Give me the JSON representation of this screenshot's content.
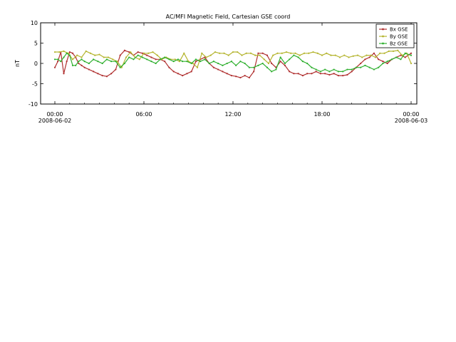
{
  "chart_data": {
    "type": "line",
    "title": "AC/MFI  Magnetic Field, Cartesian GSE coord",
    "ylabel": "nT",
    "xlabel": "",
    "ylim": [
      -10,
      10
    ],
    "xlim": [
      0,
      24
    ],
    "y_ticks": [
      10,
      5,
      0,
      -5,
      -10
    ],
    "y_tick_labels": [
      "10",
      "5",
      "0",
      "-5",
      "-10"
    ],
    "x_ticks": [
      0,
      6,
      12,
      18,
      24
    ],
    "x_tick_labels": [
      "00:00",
      "06:00",
      "12:00",
      "18:00",
      "00:00"
    ],
    "x_date_labels": [
      {
        "x": 0,
        "label": "2008-06-02"
      },
      {
        "x": 24,
        "label": "2008-06-03"
      }
    ],
    "legend_position": "top-right",
    "grid": false,
    "series": [
      {
        "name": "Bx GSE",
        "color": "#b03030",
        "x": [
          0.0,
          0.2,
          0.4,
          0.6,
          0.8,
          1.0,
          1.2,
          1.4,
          1.6,
          1.8,
          2.0,
          2.3,
          2.6,
          2.9,
          3.2,
          3.5,
          3.8,
          4.1,
          4.4,
          4.7,
          5.0,
          5.3,
          5.6,
          5.9,
          6.2,
          6.5,
          6.8,
          7.1,
          7.4,
          7.7,
          8.0,
          8.3,
          8.6,
          8.9,
          9.2,
          9.5,
          9.8,
          10.1,
          10.4,
          10.7,
          11.0,
          11.3,
          11.6,
          11.9,
          12.2,
          12.5,
          12.8,
          13.1,
          13.4,
          13.7,
          14.0,
          14.3,
          14.6,
          14.9,
          15.2,
          15.5,
          15.8,
          16.1,
          16.4,
          16.7,
          17.0,
          17.3,
          17.6,
          17.9,
          18.2,
          18.5,
          18.8,
          19.1,
          19.4,
          19.7,
          20.0,
          20.3,
          20.6,
          20.9,
          21.2,
          21.5,
          21.8,
          22.1,
          22.4,
          22.7,
          23.0,
          23.3,
          23.6,
          24.0
        ],
        "values": [
          -1.0,
          0.5,
          2.8,
          -2.5,
          0.5,
          2.8,
          2.5,
          1.5,
          0.0,
          -0.5,
          -1.0,
          -1.5,
          -2.0,
          -2.5,
          -3.0,
          -3.2,
          -2.5,
          -1.5,
          2.0,
          3.2,
          2.8,
          2.0,
          2.8,
          2.5,
          2.0,
          1.5,
          1.0,
          1.0,
          0.5,
          -1.0,
          -2.0,
          -2.5,
          -3.0,
          -2.5,
          -2.0,
          0.5,
          1.0,
          1.5,
          0.0,
          -1.0,
          -1.5,
          -2.0,
          -2.5,
          -3.0,
          -3.2,
          -3.5,
          -3.0,
          -3.5,
          -2.0,
          2.5,
          2.5,
          2.0,
          0.0,
          -1.0,
          0.5,
          -0.5,
          -2.0,
          -2.5,
          -2.5,
          -3.0,
          -2.5,
          -2.5,
          -2.0,
          -2.5,
          -2.5,
          -2.8,
          -2.5,
          -3.0,
          -3.0,
          -2.8,
          -2.0,
          -1.0,
          0.0,
          1.0,
          1.5,
          2.5,
          1.0,
          0.5,
          0.0,
          1.0,
          1.5,
          2.0,
          1.5,
          2.5
        ]
      },
      {
        "name": "By GSE",
        "color": "#b5b530",
        "x": [
          0.0,
          0.3,
          0.6,
          0.9,
          1.2,
          1.5,
          1.8,
          2.1,
          2.4,
          2.7,
          3.0,
          3.3,
          3.6,
          3.9,
          4.2,
          4.5,
          4.8,
          5.1,
          5.4,
          5.7,
          6.0,
          6.3,
          6.6,
          6.9,
          7.2,
          7.5,
          7.8,
          8.1,
          8.4,
          8.7,
          9.0,
          9.3,
          9.6,
          9.9,
          10.2,
          10.5,
          10.8,
          11.1,
          11.4,
          11.7,
          12.0,
          12.3,
          12.6,
          12.9,
          13.2,
          13.5,
          13.8,
          14.1,
          14.4,
          14.7,
          15.0,
          15.3,
          15.6,
          15.9,
          16.2,
          16.5,
          16.8,
          17.1,
          17.4,
          17.7,
          18.0,
          18.3,
          18.6,
          18.9,
          19.2,
          19.5,
          19.8,
          20.1,
          20.4,
          20.7,
          21.0,
          21.3,
          21.6,
          21.9,
          22.2,
          22.5,
          22.8,
          23.1,
          23.4,
          23.7,
          24.0
        ],
        "values": [
          2.8,
          2.8,
          3.0,
          2.5,
          1.0,
          2.0,
          1.5,
          3.0,
          2.5,
          2.0,
          2.2,
          1.5,
          1.5,
          1.0,
          0.5,
          -1.0,
          1.5,
          2.8,
          1.5,
          1.0,
          2.5,
          2.5,
          2.8,
          2.0,
          1.0,
          1.5,
          1.0,
          1.0,
          0.5,
          2.5,
          0.5,
          0.0,
          -1.0,
          2.5,
          1.5,
          2.0,
          2.8,
          2.5,
          2.5,
          2.0,
          2.8,
          2.8,
          2.0,
          2.5,
          2.5,
          2.0,
          2.0,
          1.0,
          0.0,
          2.0,
          2.5,
          2.5,
          2.8,
          2.5,
          2.5,
          2.0,
          2.5,
          2.5,
          2.8,
          2.5,
          2.0,
          2.5,
          2.0,
          2.0,
          1.5,
          2.0,
          1.5,
          1.8,
          2.0,
          1.5,
          2.0,
          2.0,
          1.5,
          2.5,
          2.5,
          3.0,
          3.0,
          3.2,
          2.0,
          2.5,
          0.0
        ]
      },
      {
        "name": "Bz GSE",
        "color": "#30b030",
        "x": [
          0.0,
          0.2,
          0.4,
          0.6,
          0.8,
          1.0,
          1.2,
          1.4,
          1.6,
          1.8,
          2.0,
          2.3,
          2.6,
          2.9,
          3.2,
          3.5,
          3.8,
          4.1,
          4.4,
          4.7,
          5.0,
          5.3,
          5.6,
          5.9,
          6.2,
          6.5,
          6.8,
          7.1,
          7.4,
          7.7,
          8.0,
          8.3,
          8.6,
          8.9,
          9.2,
          9.5,
          9.8,
          10.1,
          10.4,
          10.7,
          11.0,
          11.3,
          11.6,
          11.9,
          12.2,
          12.5,
          12.8,
          13.1,
          13.4,
          13.7,
          14.0,
          14.3,
          14.6,
          14.9,
          15.2,
          15.5,
          15.8,
          16.1,
          16.4,
          16.7,
          17.0,
          17.3,
          17.6,
          17.9,
          18.2,
          18.5,
          18.8,
          19.1,
          19.4,
          19.7,
          20.0,
          20.3,
          20.6,
          20.9,
          21.2,
          21.5,
          21.8,
          22.1,
          22.4,
          22.7,
          23.0,
          23.3,
          23.6,
          24.0
        ],
        "values": [
          1.0,
          1.0,
          0.5,
          1.5,
          2.5,
          2.0,
          -0.5,
          -0.5,
          0.5,
          1.0,
          0.5,
          0.0,
          1.0,
          0.5,
          0.0,
          1.0,
          0.5,
          0.5,
          -1.0,
          0.0,
          1.5,
          1.0,
          2.0,
          1.5,
          1.0,
          0.5,
          0.0,
          1.0,
          1.5,
          1.0,
          0.5,
          1.0,
          0.5,
          0.5,
          0.0,
          1.0,
          0.5,
          1.0,
          0.0,
          0.5,
          0.0,
          -0.5,
          0.0,
          0.5,
          -0.5,
          0.5,
          0.0,
          -1.0,
          -1.0,
          -0.5,
          0.0,
          -1.0,
          -2.0,
          -1.5,
          1.5,
          0.0,
          1.0,
          2.0,
          1.5,
          0.5,
          0.0,
          -1.0,
          -1.5,
          -2.0,
          -1.5,
          -2.0,
          -1.5,
          -2.0,
          -2.0,
          -1.5,
          -1.5,
          -1.0,
          -1.0,
          -0.5,
          -1.0,
          -1.5,
          -1.0,
          0.0,
          0.5,
          1.0,
          1.5,
          1.0,
          2.5,
          2.0
        ]
      }
    ]
  }
}
